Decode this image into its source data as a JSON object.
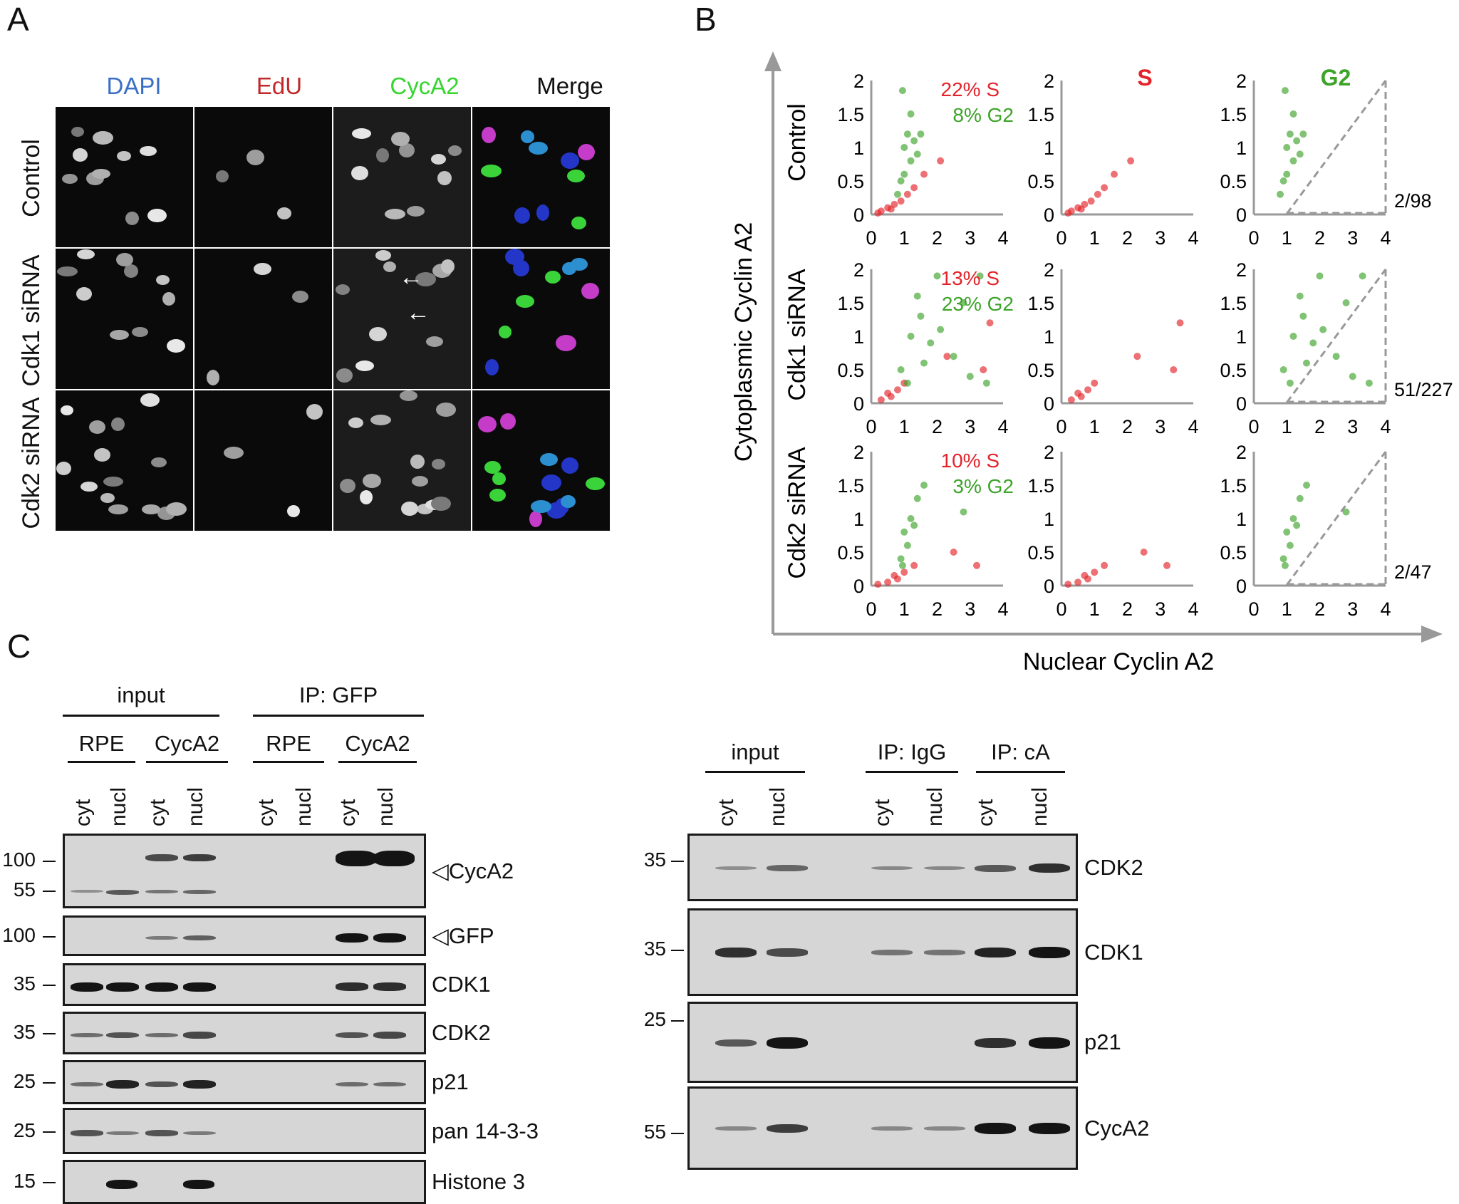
{
  "panel_labels": {
    "a": "A",
    "b": "B",
    "c": "C"
  },
  "panel_a": {
    "channels": [
      {
        "label": "DAPI",
        "color": "#3b6fc6"
      },
      {
        "label": "EdU",
        "color": "#c0282a"
      },
      {
        "label": "CycA2",
        "color": "#35d62e"
      },
      {
        "label": "Merge",
        "color": "#111111"
      }
    ],
    "rows": [
      "Control",
      "Cdk1 siRNA",
      "Cdk2 siRNA"
    ]
  },
  "panel_b": {
    "ylabel": "Cytoplasmic Cyclin A2",
    "xlabel": "Nuclear Cyclin A2",
    "col_titles": [
      "S",
      "G2"
    ],
    "row_titles": [
      "Control",
      "Cdk1 siRNA",
      "Cdk2 siRNA"
    ],
    "colors": {
      "s": "#e2242a",
      "g2": "#3da329"
    },
    "rows": [
      {
        "s_pct": "22% S",
        "g2_pct": "8% G2",
        "ratio": "2/98"
      },
      {
        "s_pct": "13% S",
        "g2_pct": "23% G2",
        "ratio": "51/227"
      },
      {
        "s_pct": "10% S",
        "g2_pct": "3% G2",
        "ratio": "2/47"
      }
    ]
  },
  "chart_data": [
    {
      "type": "scatter",
      "panel": "Control all",
      "xlim": [
        0,
        4
      ],
      "ylim": [
        0,
        2
      ],
      "x_ticks": [
        "0",
        "1",
        "2",
        "3",
        "4"
      ],
      "y_ticks": [
        "0",
        "0.5",
        "1",
        "1.5",
        "2"
      ],
      "series": [
        {
          "name": "22% S",
          "points": [
            [
              0.3,
              0.05
            ],
            [
              0.5,
              0.1
            ],
            [
              0.7,
              0.15
            ],
            [
              0.9,
              0.2
            ],
            [
              1.1,
              0.3
            ],
            [
              1.3,
              0.4
            ],
            [
              1.6,
              0.6
            ],
            [
              2.1,
              0.8
            ],
            [
              0.2,
              0.02
            ],
            [
              0.6,
              0.08
            ]
          ]
        },
        {
          "name": "8% G2",
          "points": [
            [
              0.9,
              0.5
            ],
            [
              1.0,
              1.0
            ],
            [
              1.1,
              1.2
            ],
            [
              1.2,
              0.8
            ],
            [
              1.3,
              1.1
            ],
            [
              0.95,
              1.85
            ],
            [
              1.4,
              0.9
            ],
            [
              1.5,
              1.2
            ],
            [
              1.0,
              0.6
            ],
            [
              0.8,
              0.3
            ],
            [
              1.2,
              1.5
            ]
          ]
        }
      ]
    },
    {
      "type": "scatter",
      "panel": "Control S",
      "xlim": [
        0,
        4
      ],
      "ylim": [
        0,
        2
      ],
      "series": [
        {
          "name": "S",
          "points": [
            [
              0.3,
              0.05
            ],
            [
              0.5,
              0.1
            ],
            [
              0.7,
              0.15
            ],
            [
              0.9,
              0.2
            ],
            [
              1.1,
              0.3
            ],
            [
              1.3,
              0.4
            ],
            [
              1.6,
              0.6
            ],
            [
              2.1,
              0.8
            ],
            [
              0.2,
              0.02
            ],
            [
              0.6,
              0.08
            ]
          ]
        }
      ]
    },
    {
      "type": "scatter",
      "panel": "Control G2",
      "xlim": [
        0,
        4
      ],
      "ylim": [
        0,
        2
      ],
      "series": [
        {
          "name": "G2",
          "points": [
            [
              0.9,
              0.5
            ],
            [
              1.0,
              1.0
            ],
            [
              1.1,
              1.2
            ],
            [
              1.2,
              0.8
            ],
            [
              1.3,
              1.1
            ],
            [
              0.95,
              1.85
            ],
            [
              1.4,
              0.9
            ],
            [
              1.5,
              1.2
            ],
            [
              1.0,
              0.6
            ],
            [
              0.8,
              0.3
            ],
            [
              1.2,
              1.5
            ]
          ]
        }
      ]
    },
    {
      "type": "scatter",
      "panel": "Cdk1 siRNA all",
      "xlim": [
        0,
        4
      ],
      "ylim": [
        0,
        2
      ],
      "series": [
        {
          "name": "13% S",
          "points": [
            [
              0.3,
              0.05
            ],
            [
              0.6,
              0.1
            ],
            [
              0.8,
              0.2
            ],
            [
              1.0,
              0.3
            ],
            [
              2.3,
              0.7
            ],
            [
              3.4,
              0.5
            ],
            [
              3.6,
              1.2
            ],
            [
              0.5,
              0.15
            ]
          ]
        },
        {
          "name": "23% G2",
          "points": [
            [
              0.9,
              0.5
            ],
            [
              1.2,
              1.0
            ],
            [
              1.5,
              1.3
            ],
            [
              1.8,
              0.9
            ],
            [
              2.1,
              1.1
            ],
            [
              2.5,
              0.7
            ],
            [
              3.0,
              0.4
            ],
            [
              3.3,
              1.9
            ],
            [
              1.1,
              0.3
            ],
            [
              1.4,
              1.6
            ],
            [
              2.8,
              1.5
            ],
            [
              2.0,
              1.9
            ],
            [
              1.6,
              0.6
            ],
            [
              3.5,
              0.3
            ]
          ]
        }
      ]
    },
    {
      "type": "scatter",
      "panel": "Cdk1 siRNA S",
      "xlim": [
        0,
        4
      ],
      "ylim": [
        0,
        2
      ],
      "series": [
        {
          "name": "S",
          "points": [
            [
              0.3,
              0.05
            ],
            [
              0.6,
              0.1
            ],
            [
              0.8,
              0.2
            ],
            [
              1.0,
              0.3
            ],
            [
              2.3,
              0.7
            ],
            [
              3.4,
              0.5
            ],
            [
              3.6,
              1.2
            ],
            [
              0.5,
              0.15
            ]
          ]
        }
      ]
    },
    {
      "type": "scatter",
      "panel": "Cdk1 siRNA G2",
      "xlim": [
        0,
        4
      ],
      "ylim": [
        0,
        2
      ],
      "series": [
        {
          "name": "G2",
          "points": [
            [
              0.9,
              0.5
            ],
            [
              1.2,
              1.0
            ],
            [
              1.5,
              1.3
            ],
            [
              1.8,
              0.9
            ],
            [
              2.1,
              1.1
            ],
            [
              2.5,
              0.7
            ],
            [
              3.0,
              0.4
            ],
            [
              3.3,
              1.9
            ],
            [
              1.1,
              0.3
            ],
            [
              1.4,
              1.6
            ],
            [
              2.8,
              1.5
            ],
            [
              2.0,
              1.9
            ],
            [
              1.6,
              0.6
            ],
            [
              3.5,
              0.3
            ]
          ]
        }
      ]
    },
    {
      "type": "scatter",
      "panel": "Cdk2 siRNA all",
      "xlim": [
        0,
        4
      ],
      "ylim": [
        0,
        2
      ],
      "series": [
        {
          "name": "10% S",
          "points": [
            [
              0.2,
              0.02
            ],
            [
              0.5,
              0.05
            ],
            [
              0.8,
              0.1
            ],
            [
              1.0,
              0.2
            ],
            [
              1.3,
              0.3
            ],
            [
              2.5,
              0.5
            ],
            [
              3.2,
              0.3
            ],
            [
              0.7,
              0.15
            ]
          ]
        },
        {
          "name": "3% G2",
          "points": [
            [
              0.9,
              0.4
            ],
            [
              1.0,
              0.8
            ],
            [
              1.2,
              1.0
            ],
            [
              1.4,
              1.3
            ],
            [
              1.6,
              1.5
            ],
            [
              2.8,
              1.1
            ],
            [
              1.1,
              0.6
            ],
            [
              1.3,
              0.9
            ],
            [
              0.95,
              0.3
            ]
          ]
        }
      ]
    },
    {
      "type": "scatter",
      "panel": "Cdk2 siRNA S",
      "xlim": [
        0,
        4
      ],
      "ylim": [
        0,
        2
      ],
      "series": [
        {
          "name": "S",
          "points": [
            [
              0.2,
              0.02
            ],
            [
              0.5,
              0.05
            ],
            [
              0.8,
              0.1
            ],
            [
              1.0,
              0.2
            ],
            [
              1.3,
              0.3
            ],
            [
              2.5,
              0.5
            ],
            [
              3.2,
              0.3
            ],
            [
              0.7,
              0.15
            ]
          ]
        }
      ]
    },
    {
      "type": "scatter",
      "panel": "Cdk2 siRNA G2",
      "xlim": [
        0,
        4
      ],
      "ylim": [
        0,
        2
      ],
      "series": [
        {
          "name": "G2",
          "points": [
            [
              0.9,
              0.4
            ],
            [
              1.0,
              0.8
            ],
            [
              1.2,
              1.0
            ],
            [
              1.4,
              1.3
            ],
            [
              1.6,
              1.5
            ],
            [
              2.8,
              1.1
            ],
            [
              1.1,
              0.6
            ],
            [
              1.3,
              0.9
            ],
            [
              0.95,
              0.3
            ]
          ]
        }
      ]
    }
  ],
  "panel_c_left": {
    "top_groups": [
      "input",
      "IP: GFP"
    ],
    "sub_groups": [
      "RPE",
      "CycA2",
      "RPE",
      "CycA2"
    ],
    "lanes": [
      "cyt",
      "nucl",
      "cyt",
      "nucl",
      "cyt",
      "nucl",
      "cyt",
      "nucl"
    ],
    "blots": [
      {
        "label": "◁CycA2",
        "mw": [
          "100",
          "55"
        ]
      },
      {
        "label": "◁GFP",
        "mw": [
          "100"
        ]
      },
      {
        "label": "CDK1",
        "mw": [
          "35"
        ]
      },
      {
        "label": "CDK2",
        "mw": [
          "35"
        ]
      },
      {
        "label": "p21",
        "mw": [
          "25"
        ]
      },
      {
        "label": "pan 14-3-3",
        "mw": [
          "25"
        ]
      },
      {
        "label": "Histone 3",
        "mw": [
          "15"
        ]
      }
    ]
  },
  "panel_c_right": {
    "groups": [
      "input",
      "IP: IgG",
      "IP: cA"
    ],
    "lanes": [
      "cyt",
      "nucl",
      "cyt",
      "nucl",
      "cyt",
      "nucl"
    ],
    "blots": [
      {
        "label": "CDK2",
        "mw": "35"
      },
      {
        "label": "CDK1",
        "mw": "35"
      },
      {
        "label": "p21",
        "mw": "25"
      },
      {
        "label": "CycA2",
        "mw": "55"
      }
    ]
  }
}
